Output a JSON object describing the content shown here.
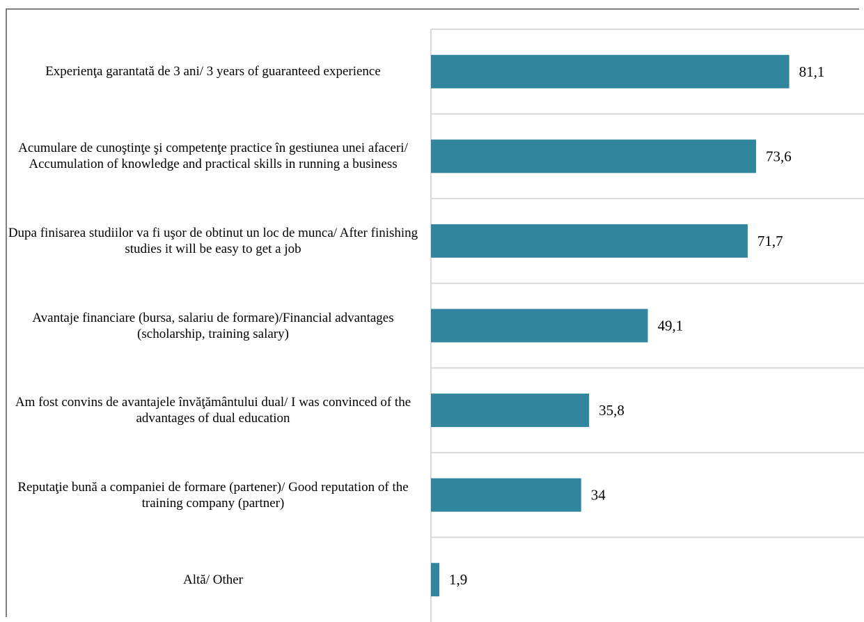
{
  "chart_data": {
    "type": "bar",
    "orientation": "horizontal",
    "title": "",
    "xlabel": "",
    "ylabel": "",
    "categories": [
      "Experienţa garantată de 3 ani/ 3 years of guaranteed experience",
      "Acumulare de cunoştinţe şi competenţe practice în gestiunea unei afaceri/ Accumulation of knowledge and practical skills in running a business",
      "Dupa finisarea studiilor va fi uşor de obtinut un loc de munca/ After finishing studies it will be easy to get a job",
      "Avantaje financiare (bursa, salariu de formare)/Financial advantages (scholarship, training salary)",
      "Am fost convins de avantajele învăţământului dual/ I was convinced of the advantages of dual education",
      "Reputaţie bună a companiei de formare (partener)/ Good reputation of the training company (partner)",
      "Altă/ Other"
    ],
    "values": [
      81.1,
      73.6,
      71.7,
      49.1,
      35.8,
      34,
      1.9
    ],
    "data_labels": [
      "81,1",
      "73,6",
      "71,7",
      "49,1",
      "35,8",
      "34",
      "1,9"
    ],
    "xlim": [
      0,
      100
    ],
    "grid": true,
    "legend": "none",
    "bar_color": "#31859c",
    "gridline_color": "#d9d9d9"
  }
}
